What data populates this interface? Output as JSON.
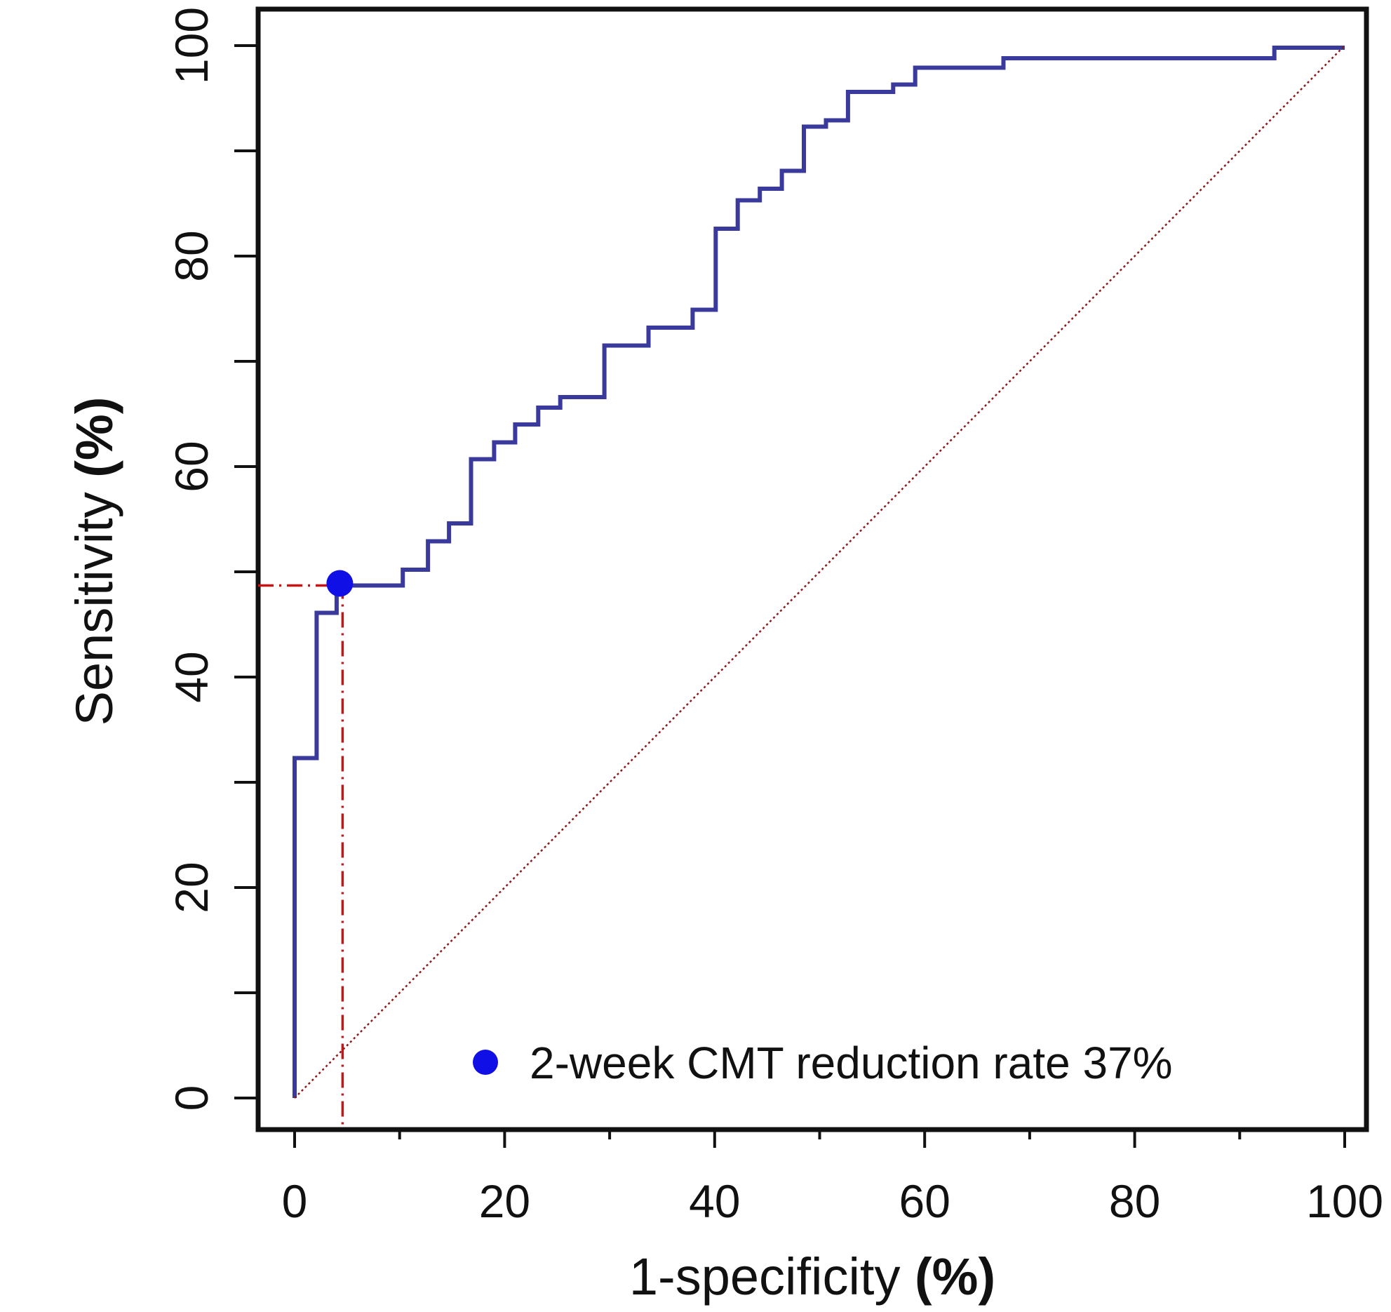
{
  "chart_data": {
    "type": "line",
    "title": "",
    "xlabel": "1-specificity",
    "xlabel_unit": "(%)",
    "ylabel": "Sensitivity",
    "ylabel_unit": "(%)",
    "xlim": [
      0,
      100
    ],
    "ylim": [
      0,
      100
    ],
    "x_ticks": [
      0,
      20,
      40,
      60,
      80,
      100
    ],
    "y_ticks": [
      0,
      20,
      40,
      60,
      80,
      100
    ],
    "x_minor_ticks": [
      10,
      30,
      50,
      70,
      90
    ],
    "y_minor_ticks": [
      10,
      30,
      50,
      70,
      90
    ],
    "grid": false,
    "series": [
      {
        "name": "ROC curve",
        "color": "#3a3a9c",
        "style": "step",
        "points": [
          [
            0,
            0
          ],
          [
            0,
            32.3
          ],
          [
            2.1,
            32.3
          ],
          [
            2.1,
            46.1
          ],
          [
            4,
            46.1
          ],
          [
            4,
            48.7
          ],
          [
            10.3,
            48.7
          ],
          [
            10.3,
            50.2
          ],
          [
            12.7,
            50.2
          ],
          [
            12.7,
            52.9
          ],
          [
            14.7,
            52.9
          ],
          [
            14.7,
            54.6
          ],
          [
            16.8,
            54.6
          ],
          [
            16.8,
            60.7
          ],
          [
            19,
            60.7
          ],
          [
            19,
            62.3
          ],
          [
            21,
            62.3
          ],
          [
            21,
            64
          ],
          [
            23.2,
            64
          ],
          [
            23.2,
            65.6
          ],
          [
            25.3,
            65.6
          ],
          [
            25.3,
            66.6
          ],
          [
            29.5,
            66.6
          ],
          [
            29.5,
            71.5
          ],
          [
            33.7,
            71.5
          ],
          [
            33.7,
            73.2
          ],
          [
            37.9,
            73.2
          ],
          [
            37.9,
            74.9
          ],
          [
            40.1,
            74.9
          ],
          [
            40.1,
            82.6
          ],
          [
            42.2,
            82.6
          ],
          [
            42.2,
            85.3
          ],
          [
            44.3,
            85.3
          ],
          [
            44.3,
            86.4
          ],
          [
            46.4,
            86.4
          ],
          [
            46.4,
            88.1
          ],
          [
            48.5,
            88.1
          ],
          [
            48.5,
            92.3
          ],
          [
            50.6,
            92.3
          ],
          [
            50.6,
            92.9
          ],
          [
            52.7,
            92.9
          ],
          [
            52.7,
            95.6
          ],
          [
            57,
            95.6
          ],
          [
            57,
            96.3
          ],
          [
            59.1,
            96.3
          ],
          [
            59.1,
            97.9
          ],
          [
            67.5,
            97.9
          ],
          [
            67.5,
            98.8
          ],
          [
            93.3,
            98.8
          ],
          [
            93.3,
            99.8
          ],
          [
            100,
            99.8
          ]
        ]
      },
      {
        "name": "Reference line",
        "color": "#8b1a1a",
        "style": "dotted",
        "points": [
          [
            0,
            0
          ],
          [
            100,
            100
          ]
        ]
      }
    ],
    "cutoff": {
      "x": 4.3,
      "y": 48.9,
      "color": "#1010e6",
      "guide_color": "#c81414"
    },
    "legend": {
      "position": "bottom-right",
      "entries": [
        {
          "label": "2-week CMT reduction rate 37%",
          "color": "#1010e6",
          "marker": "circle"
        }
      ]
    }
  }
}
